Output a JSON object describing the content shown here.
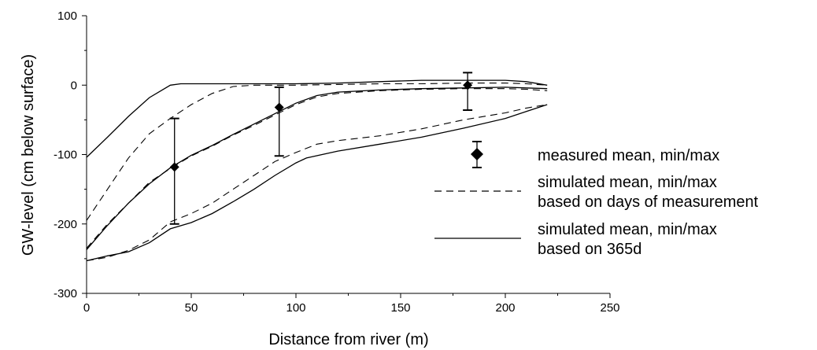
{
  "chart_data": {
    "type": "line",
    "title": "",
    "xlabel": "Distance from river (m)",
    "ylabel": "GW-level (cm below surface)",
    "xlim": [
      0,
      250
    ],
    "ylim": [
      -300,
      100
    ],
    "xticks": [
      0,
      50,
      100,
      150,
      200,
      250
    ],
    "yticks": [
      100,
      0,
      -100,
      -200,
      -300
    ],
    "grid": false,
    "legend_position": "right",
    "legend": [
      {
        "key": "measured",
        "lines": [
          "measured mean, min/max"
        ]
      },
      {
        "key": "sim_days",
        "lines": [
          "simulated mean, min/max",
          "based on days of measurement"
        ]
      },
      {
        "key": "sim_365",
        "lines": [
          "simulated mean, min/max",
          "based on 365d"
        ]
      }
    ],
    "series": [
      {
        "name": "measured mean, min/max",
        "style": "errorbar",
        "points": [
          {
            "x": 42,
            "mean": -118,
            "min": -200,
            "max": -48
          },
          {
            "x": 92,
            "mean": -32,
            "min": -102,
            "max": -3
          },
          {
            "x": 182,
            "mean": 0,
            "min": -36,
            "max": 18
          }
        ]
      },
      {
        "name": "simulated mean, min/max based on days of measurement",
        "style": "dashed",
        "lines": [
          {
            "stat": "max",
            "x": [
              0,
              10,
              20,
              30,
              40,
              50,
              60,
              70,
              80,
              90,
              100,
              120,
              140,
              160,
              180,
              200,
              210,
              220
            ],
            "y": [
              -195,
              -150,
              -105,
              -70,
              -48,
              -28,
              -12,
              -2,
              0,
              0,
              0,
              1,
              2,
              2,
              3,
              3,
              2,
              0
            ]
          },
          {
            "stat": "mean",
            "x": [
              0,
              10,
              20,
              30,
              40,
              50,
              60,
              70,
              80,
              90,
              100,
              110,
              120,
              140,
              160,
              180,
              200,
              210,
              220
            ],
            "y": [
              -235,
              -200,
              -170,
              -140,
              -120,
              -102,
              -88,
              -72,
              -58,
              -43,
              -28,
              -17,
              -12,
              -8,
              -6,
              -5,
              -5,
              -6,
              -8
            ]
          },
          {
            "stat": "min",
            "x": [
              0,
              10,
              20,
              30,
              40,
              50,
              60,
              70,
              80,
              90,
              100,
              110,
              120,
              140,
              160,
              180,
              200,
              210,
              220
            ],
            "y": [
              -253,
              -248,
              -238,
              -223,
              -197,
              -185,
              -170,
              -150,
              -130,
              -110,
              -97,
              -85,
              -80,
              -73,
              -63,
              -50,
              -40,
              -33,
              -28
            ]
          }
        ]
      },
      {
        "name": "simulated mean, min/max based on 365d",
        "style": "solid",
        "lines": [
          {
            "stat": "max",
            "x": [
              0,
              10,
              20,
              30,
              40,
              45,
              55,
              80,
              100,
              120,
              140,
              160,
              180,
              200,
              210,
              220
            ],
            "y": [
              -104,
              -75,
              -45,
              -18,
              0,
              2,
              2,
              2,
              2,
              3,
              5,
              7,
              7,
              7,
              5,
              0
            ]
          },
          {
            "stat": "mean",
            "x": [
              0,
              10,
              20,
              30,
              40,
              50,
              60,
              70,
              80,
              90,
              100,
              110,
              120,
              140,
              160,
              180,
              200,
              210,
              220
            ],
            "y": [
              -237,
              -202,
              -170,
              -142,
              -119,
              -101,
              -87,
              -71,
              -56,
              -41,
              -26,
              -15,
              -10,
              -7,
              -5,
              -4,
              -3,
              -4,
              -5
            ]
          },
          {
            "stat": "min",
            "x": [
              0,
              10,
              20,
              30,
              40,
              50,
              60,
              70,
              80,
              90,
              100,
              105,
              120,
              140,
              160,
              180,
              200,
              210,
              220
            ],
            "y": [
              -253,
              -246,
              -240,
              -227,
              -207,
              -198,
              -185,
              -168,
              -150,
              -130,
              -112,
              -105,
              -95,
              -85,
              -75,
              -62,
              -48,
              -38,
              -28
            ]
          }
        ]
      }
    ]
  }
}
